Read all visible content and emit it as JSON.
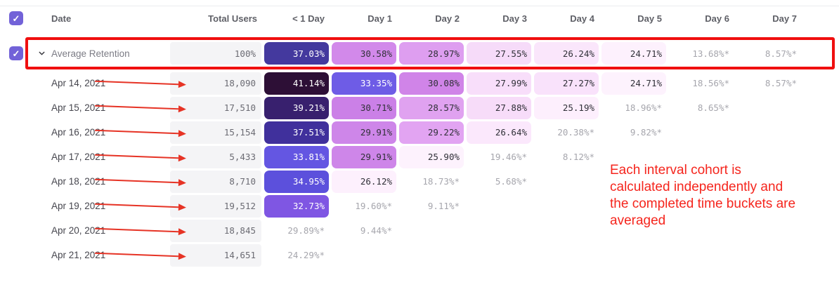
{
  "colors": {
    "accent_purple": "#7262d8",
    "highlight_box_red": "#f00f0f",
    "arrow_red": "#e63325",
    "note_red": "#f5251d",
    "heat_darkest": "#2d0f36",
    "heat_lightest": "#fdf2fd"
  },
  "header": {
    "columns": [
      "Date",
      "Total Users",
      "< 1 Day",
      "Day 1",
      "Day 2",
      "Day 3",
      "Day 4",
      "Day 5",
      "Day 6",
      "Day 7"
    ]
  },
  "average_row": {
    "label": "Average Retention",
    "total": "100%",
    "cells": [
      {
        "value": "37.03%",
        "bg": "#44399e",
        "fg": "#ffffff"
      },
      {
        "value": "30.58%",
        "bg": "#d289ea",
        "fg": "#303038"
      },
      {
        "value": "28.97%",
        "bg": "#de9ef0",
        "fg": "#303038"
      },
      {
        "value": "27.55%",
        "bg": "#f6dbf9",
        "fg": "#303038"
      },
      {
        "value": "26.24%",
        "bg": "#fae6fb",
        "fg": "#303038"
      },
      {
        "value": "24.71%",
        "bg": "#fdf1fd",
        "fg": "#303038"
      },
      {
        "value": "13.68%*",
        "muted": true
      },
      {
        "value": "8.57%*",
        "muted": true
      }
    ]
  },
  "rows": [
    {
      "date": "Apr 14, 2021",
      "total": "18,090",
      "cells": [
        {
          "value": "41.14%",
          "bg": "#2d0f36",
          "fg": "#ffffff"
        },
        {
          "value": "33.35%",
          "bg": "#6e5ce6",
          "fg": "#ffffff"
        },
        {
          "value": "30.08%",
          "bg": "#d084e8",
          "fg": "#303038"
        },
        {
          "value": "27.99%",
          "bg": "#f8defa",
          "fg": "#303038"
        },
        {
          "value": "27.27%",
          "bg": "#f9e2fb",
          "fg": "#303038"
        },
        {
          "value": "24.71%",
          "bg": "#fdf2fd",
          "fg": "#303038"
        },
        {
          "value": "18.56%*",
          "muted": true
        },
        {
          "value": "8.57%*",
          "muted": true
        }
      ]
    },
    {
      "date": "Apr 15, 2021",
      "total": "17,510",
      "cells": [
        {
          "value": "39.21%",
          "bg": "#38206e",
          "fg": "#ffffff"
        },
        {
          "value": "30.71%",
          "bg": "#cb80e7",
          "fg": "#303038"
        },
        {
          "value": "28.57%",
          "bg": "#e0a2f0",
          "fg": "#303038"
        },
        {
          "value": "27.88%",
          "bg": "#f7dcf9",
          "fg": "#303038"
        },
        {
          "value": "25.19%",
          "bg": "#fdeffd",
          "fg": "#303038"
        },
        {
          "value": "18.96%*",
          "muted": true
        },
        {
          "value": "8.65%*",
          "muted": true
        },
        null
      ]
    },
    {
      "date": "Apr 16, 2021",
      "total": "15,154",
      "cells": [
        {
          "value": "37.51%",
          "bg": "#40309c",
          "fg": "#ffffff"
        },
        {
          "value": "29.91%",
          "bg": "#ce86e9",
          "fg": "#303038"
        },
        {
          "value": "29.22%",
          "bg": "#e2a4f2",
          "fg": "#303038"
        },
        {
          "value": "26.64%",
          "bg": "#fbe8fc",
          "fg": "#303038"
        },
        {
          "value": "20.38%*",
          "muted": true
        },
        {
          "value": "9.82%*",
          "muted": true
        },
        null,
        null
      ]
    },
    {
      "date": "Apr 17, 2021",
      "total": "5,433",
      "cells": [
        {
          "value": "33.81%",
          "bg": "#6456e2",
          "fg": "#ffffff"
        },
        {
          "value": "29.91%",
          "bg": "#ce86e9",
          "fg": "#303038"
        },
        {
          "value": "25.90%",
          "bg": "#fdf2fd",
          "fg": "#303038"
        },
        {
          "value": "19.46%*",
          "muted": true
        },
        {
          "value": "8.12%*",
          "muted": true
        },
        null,
        null,
        null
      ]
    },
    {
      "date": "Apr 18, 2021",
      "total": "8,710",
      "cells": [
        {
          "value": "34.95%",
          "bg": "#5c50dc",
          "fg": "#ffffff"
        },
        {
          "value": "26.12%",
          "bg": "#fdf0fd",
          "fg": "#303038"
        },
        {
          "value": "18.73%*",
          "muted": true
        },
        {
          "value": "5.68%*",
          "muted": true
        },
        null,
        null,
        null,
        null
      ]
    },
    {
      "date": "Apr 19, 2021",
      "total": "19,512",
      "cells": [
        {
          "value": "32.73%",
          "bg": "#7f56e3",
          "fg": "#ffffff"
        },
        {
          "value": "19.60%*",
          "muted": true
        },
        {
          "value": "9.11%*",
          "muted": true
        },
        null,
        null,
        null,
        null,
        null
      ]
    },
    {
      "date": "Apr 20, 2021",
      "total": "18,845",
      "cells": [
        {
          "value": "29.89%*",
          "muted": true
        },
        {
          "value": "9.44%*",
          "muted": true
        },
        null,
        null,
        null,
        null,
        null,
        null
      ]
    },
    {
      "date": "Apr 21, 2021",
      "total": "14,651",
      "cells": [
        {
          "value": "24.29%*",
          "muted": true
        },
        null,
        null,
        null,
        null,
        null,
        null,
        null
      ]
    }
  ],
  "note": {
    "lines": [
      "Each interval cohort is",
      "calculated independently and",
      "the completed time buckets are",
      "averaged"
    ]
  },
  "icons": {
    "checkmark": "✓"
  }
}
